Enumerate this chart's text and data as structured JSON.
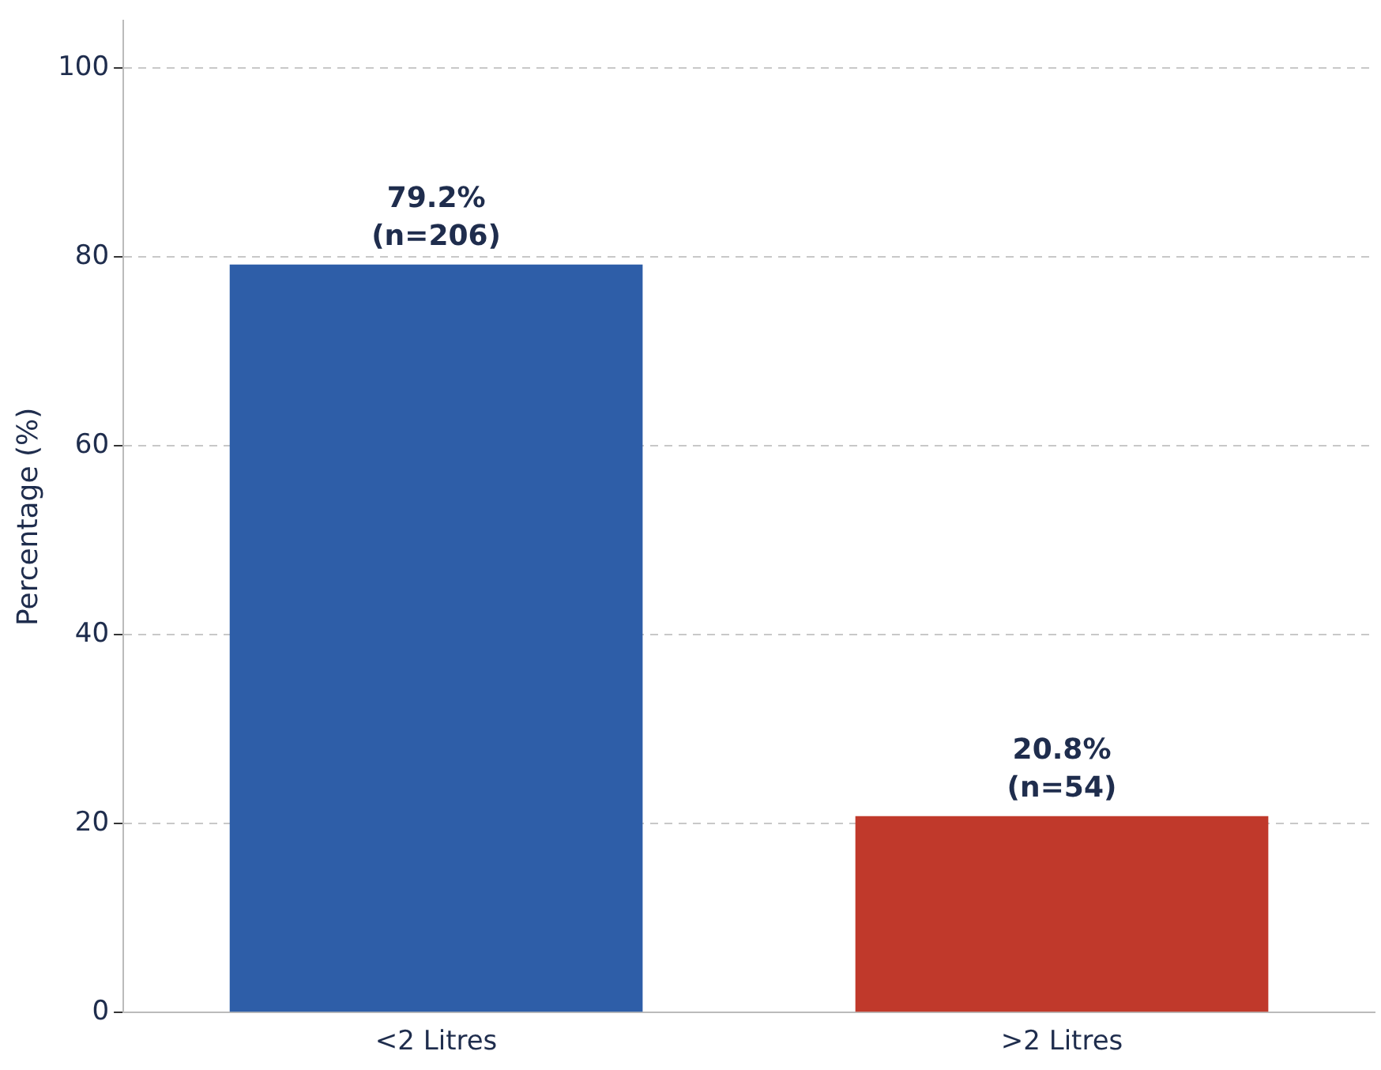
{
  "chart_data": {
    "type": "bar",
    "ylabel": "Percentage (%)",
    "categories": [
      "<2 Litres",
      ">2 Litres"
    ],
    "values": [
      79.2,
      20.8
    ],
    "colors": [
      "#2e5ea8",
      "#c0392b"
    ],
    "value_labels": [
      "79.2%\n(n=206)",
      "20.8%\n(n=54)"
    ],
    "ylim": [
      0,
      105
    ],
    "yticks": [
      0,
      20,
      40,
      60,
      80,
      100
    ],
    "grid": "y"
  }
}
